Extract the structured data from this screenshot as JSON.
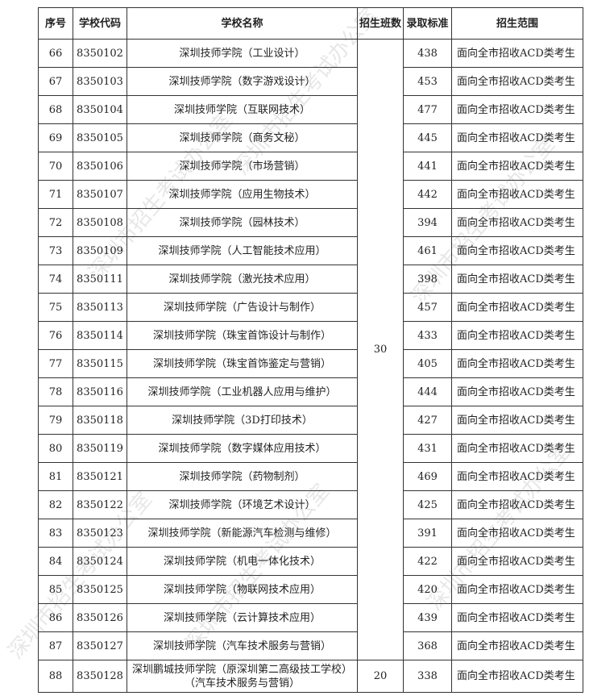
{
  "watermark": "深圳市招生考试办公室",
  "headers": [
    "序号",
    "学校代码",
    "学校名称",
    "招生班数",
    "录取标准",
    "招生范围"
  ],
  "class_count_merged": "30",
  "rows": [
    {
      "no": "66",
      "code": "8350102",
      "name": "深圳技师学院（工业设计）",
      "score": "438",
      "scope": "面向全市招收ACD类考生"
    },
    {
      "no": "67",
      "code": "8350103",
      "name": "深圳技师学院（数字游戏设计）",
      "score": "453",
      "scope": "面向全市招收ACD类考生"
    },
    {
      "no": "68",
      "code": "8350104",
      "name": "深圳技师学院（互联网技术）",
      "score": "477",
      "scope": "面向全市招收ACD类考生"
    },
    {
      "no": "69",
      "code": "8350105",
      "name": "深圳技师学院（商务文秘）",
      "score": "445",
      "scope": "面向全市招收ACD类考生"
    },
    {
      "no": "70",
      "code": "8350106",
      "name": "深圳技师学院（市场营销）",
      "score": "441",
      "scope": "面向全市招收ACD类考生"
    },
    {
      "no": "71",
      "code": "8350107",
      "name": "深圳技师学院（应用生物技术）",
      "score": "442",
      "scope": "面向全市招收ACD类考生"
    },
    {
      "no": "72",
      "code": "8350108",
      "name": "深圳技师学院（园林技术）",
      "score": "394",
      "scope": "面向全市招收ACD类考生"
    },
    {
      "no": "73",
      "code": "8350109",
      "name": "深圳技师学院（人工智能技术应用）",
      "score": "461",
      "scope": "面向全市招收ACD类考生"
    },
    {
      "no": "74",
      "code": "8350111",
      "name": "深圳技师学院（激光技术应用）",
      "score": "398",
      "scope": "面向全市招收ACD类考生"
    },
    {
      "no": "75",
      "code": "8350113",
      "name": "深圳技师学院（广告设计与制作）",
      "score": "457",
      "scope": "面向全市招收ACD类考生"
    },
    {
      "no": "76",
      "code": "8350114",
      "name": "深圳技师学院（珠宝首饰设计与制作）",
      "score": "433",
      "scope": "面向全市招收ACD类考生"
    },
    {
      "no": "77",
      "code": "8350115",
      "name": "深圳技师学院（珠宝首饰鉴定与营销）",
      "score": "405",
      "scope": "面向全市招收ACD类考生"
    },
    {
      "no": "78",
      "code": "8350116",
      "name": "深圳技师学院（工业机器人应用与维护）",
      "score": "444",
      "scope": "面向全市招收ACD类考生"
    },
    {
      "no": "79",
      "code": "8350118",
      "name": "深圳技师学院（3D打印技术）",
      "score": "427",
      "scope": "面向全市招收ACD类考生"
    },
    {
      "no": "80",
      "code": "8350119",
      "name": "深圳技师学院（数字媒体应用技术）",
      "score": "431",
      "scope": "面向全市招收ACD类考生"
    },
    {
      "no": "81",
      "code": "8350121",
      "name": "深圳技师学院（药物制剂）",
      "score": "469",
      "scope": "面向全市招收ACD类考生"
    },
    {
      "no": "82",
      "code": "8350122",
      "name": "深圳技师学院（环境艺术设计）",
      "score": "425",
      "scope": "面向全市招收ACD类考生"
    },
    {
      "no": "83",
      "code": "8350123",
      "name": "深圳技师学院（新能源汽车检测与维修）",
      "score": "391",
      "scope": "面向全市招收ACD类考生"
    },
    {
      "no": "84",
      "code": "8350124",
      "name": "深圳技师学院（机电一体化技术）",
      "score": "422",
      "scope": "面向全市招收ACD类考生"
    },
    {
      "no": "85",
      "code": "8350125",
      "name": "深圳技师学院（物联网技术应用）",
      "score": "420",
      "scope": "面向全市招收ACD类考生"
    },
    {
      "no": "86",
      "code": "8350126",
      "name": "深圳技师学院（云计算技术应用）",
      "score": "439",
      "scope": "面向全市招收ACD类考生"
    },
    {
      "no": "87",
      "code": "8350127",
      "name": "深圳技师学院（汽车技术服务与营销）",
      "score": "368",
      "scope": "面向全市招收ACD类考生"
    }
  ],
  "last_row": {
    "no": "88",
    "code": "8350128",
    "name_line1": "深圳鹏城技师学院（原深圳第二高级技工学校）",
    "name_line2": "（汽车技术服务与营销）",
    "classes": "20",
    "score": "338",
    "scope": "面向全市招收ACD类考生"
  }
}
